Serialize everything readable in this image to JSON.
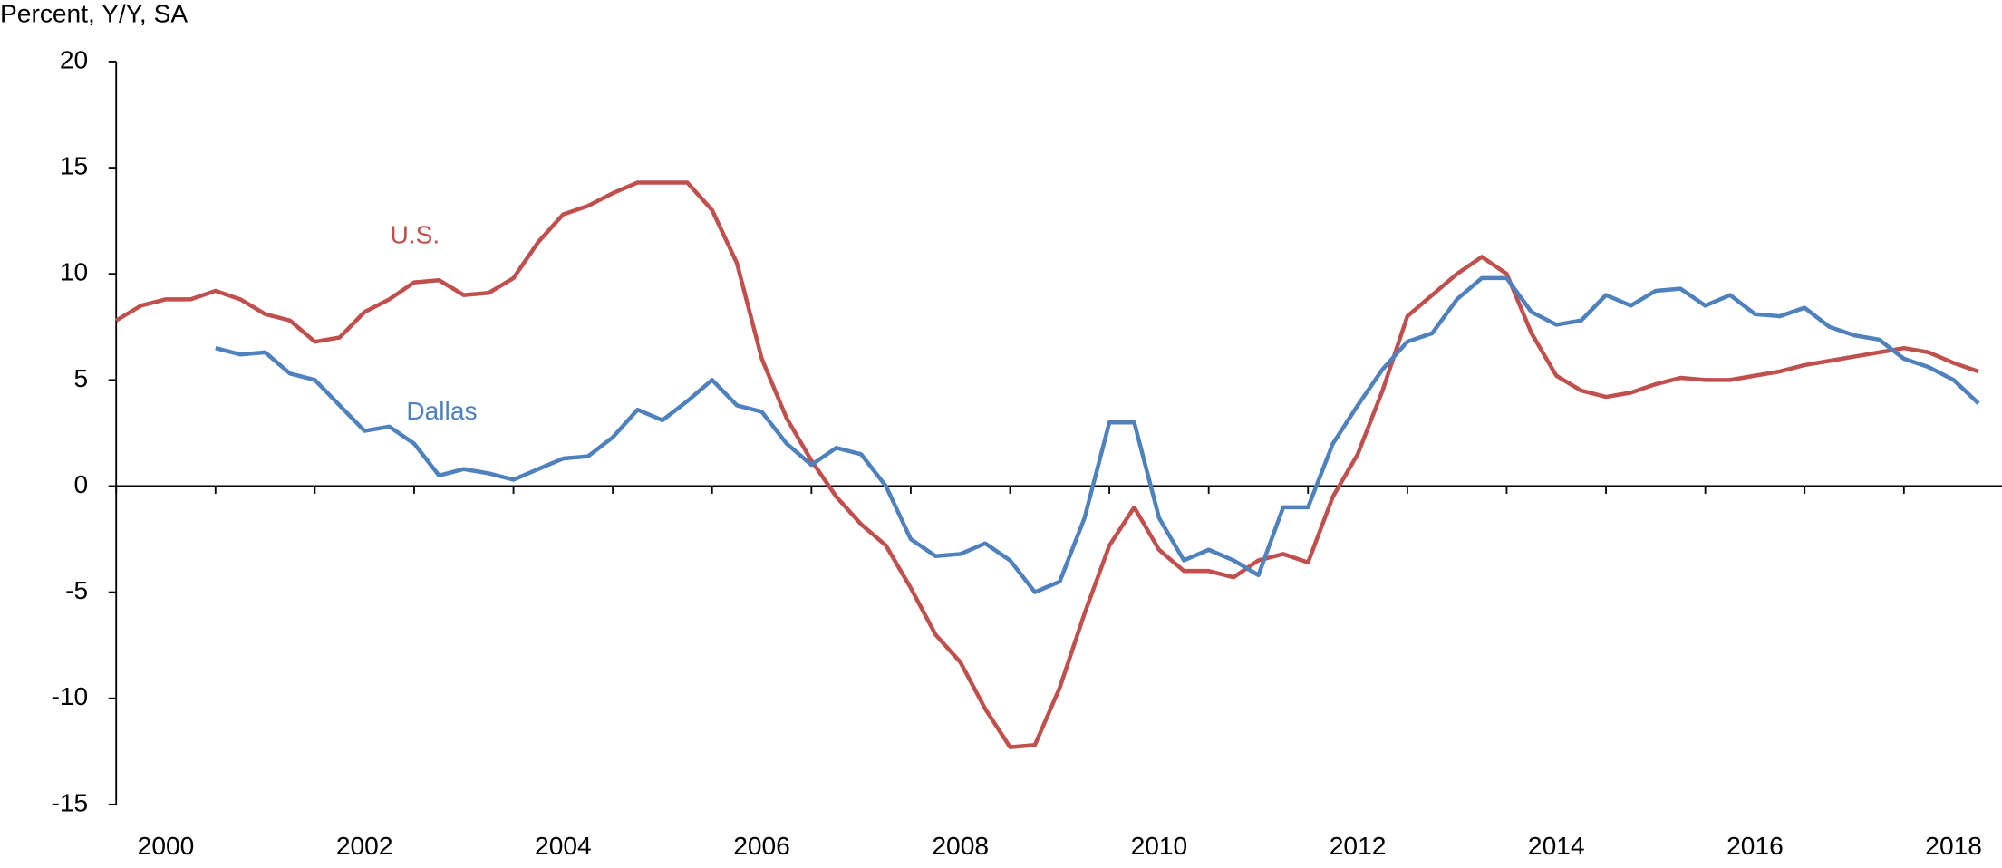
{
  "chart_data": {
    "type": "line",
    "y_axis_label": "Percent, Y/Y, SA",
    "xlim": [
      2000,
      2019
    ],
    "ylim": [
      -15,
      20
    ],
    "yticks": [
      -15,
      -10,
      -5,
      0,
      5,
      10,
      15,
      20
    ],
    "xticks": [
      {
        "value": 2000.5,
        "label": "2000"
      },
      {
        "value": 2002.5,
        "label": "2002"
      },
      {
        "value": 2004.5,
        "label": "2004"
      },
      {
        "value": 2006.5,
        "label": "2006"
      },
      {
        "value": 2008.5,
        "label": "2008"
      },
      {
        "value": 2010.5,
        "label": "2010"
      },
      {
        "value": 2012.5,
        "label": "2012"
      },
      {
        "value": 2014.5,
        "label": "2014"
      },
      {
        "value": 2016.5,
        "label": "2016"
      },
      {
        "value": 2018.5,
        "label": "2018"
      }
    ],
    "x": [
      2000,
      2000.25,
      2000.5,
      2000.75,
      2001,
      2001.25,
      2001.5,
      2001.75,
      2002,
      2002.25,
      2002.5,
      2002.75,
      2003,
      2003.25,
      2003.5,
      2003.75,
      2004,
      2004.25,
      2004.5,
      2004.75,
      2005,
      2005.25,
      2005.5,
      2005.75,
      2006,
      2006.25,
      2006.5,
      2006.75,
      2007,
      2007.25,
      2007.5,
      2007.75,
      2008,
      2008.25,
      2008.5,
      2008.75,
      2009,
      2009.25,
      2009.5,
      2009.75,
      2010,
      2010.25,
      2010.5,
      2010.75,
      2011,
      2011.25,
      2011.5,
      2011.75,
      2012,
      2012.25,
      2012.5,
      2012.75,
      2013,
      2013.25,
      2013.5,
      2013.75,
      2014,
      2014.25,
      2014.5,
      2014.75,
      2015,
      2015.25,
      2015.5,
      2015.75,
      2016,
      2016.25,
      2016.5,
      2016.75,
      2017,
      2017.25,
      2017.5,
      2017.75,
      2018,
      2018.25,
      2018.5,
      2018.75
    ],
    "series": [
      {
        "name": "U.S.",
        "color": "#c0504d",
        "values": [
          7.8,
          8.5,
          8.8,
          8.8,
          9.2,
          8.8,
          8.1,
          7.8,
          6.8,
          7.0,
          8.2,
          8.8,
          9.6,
          9.7,
          9.0,
          9.1,
          9.8,
          11.5,
          12.8,
          13.2,
          13.8,
          14.3,
          14.3,
          14.3,
          13.0,
          10.5,
          6.0,
          3.2,
          1.2,
          -0.5,
          -1.8,
          -2.8,
          -4.8,
          -7.0,
          -8.3,
          -10.5,
          -12.3,
          -12.2,
          -9.5,
          -6.0,
          -2.8,
          -1.0,
          -3.0,
          -4.0,
          -4.0,
          -4.3,
          -3.5,
          -3.2,
          -3.6,
          -0.5,
          1.5,
          4.5,
          8.0,
          9.0,
          10.0,
          10.8,
          10.0,
          7.2,
          5.2,
          4.5,
          4.2,
          4.4,
          4.8,
          5.1,
          5.0,
          5.0,
          5.2,
          5.4,
          5.7,
          5.9,
          6.1,
          6.3,
          6.5,
          6.3,
          5.8,
          5.4
        ]
      },
      {
        "name": "Dallas",
        "color": "#4f81bd",
        "values": [
          null,
          null,
          null,
          null,
          6.5,
          6.2,
          6.3,
          5.3,
          5.0,
          3.8,
          2.6,
          2.8,
          2.0,
          0.5,
          0.8,
          0.6,
          0.3,
          0.8,
          1.3,
          1.4,
          2.3,
          3.6,
          3.1,
          4.0,
          5.0,
          3.8,
          3.5,
          2.0,
          1.0,
          1.8,
          1.5,
          0.0,
          -2.5,
          -3.3,
          -3.2,
          -2.7,
          -3.5,
          -5.0,
          -4.5,
          -1.5,
          3.0,
          3.0,
          -1.5,
          -3.5,
          -3.0,
          -3.5,
          -4.2,
          -1.0,
          -1.0,
          2.0,
          3.8,
          5.5,
          6.8,
          7.2,
          8.8,
          9.8,
          9.8,
          8.2,
          7.6,
          7.8,
          9.0,
          8.5,
          9.2,
          9.3,
          8.5,
          9.0,
          8.1,
          8.0,
          8.4,
          7.5,
          7.1,
          6.9,
          6.0,
          5.6,
          5.0,
          3.9
        ]
      }
    ]
  }
}
